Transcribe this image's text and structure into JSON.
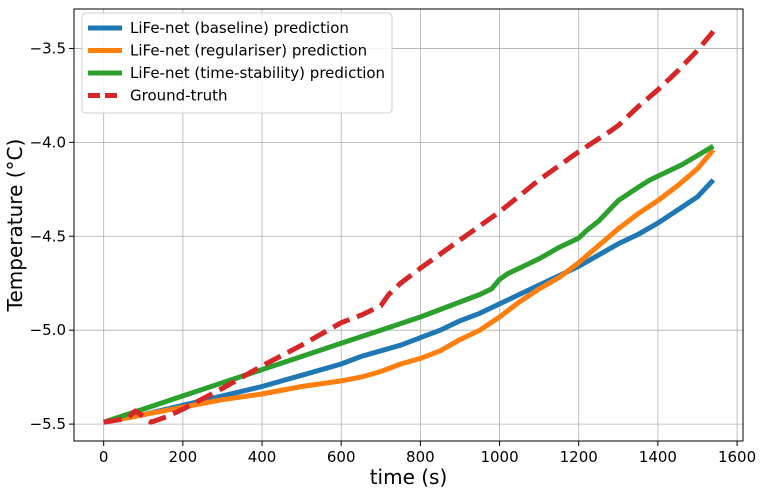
{
  "chart_data": {
    "type": "line",
    "title": "",
    "xlabel": "time (s)",
    "ylabel": "Temperature (°C)",
    "xlim": [
      -75,
      1615
    ],
    "ylim": [
      -5.59,
      -3.29
    ],
    "xticks": [
      0,
      200,
      400,
      600,
      800,
      1000,
      1200,
      1400,
      1600
    ],
    "yticks": [
      -5.5,
      -5.0,
      -4.5,
      -4.0,
      -3.5
    ],
    "xtick_labels": [
      "0",
      "200",
      "400",
      "600",
      "800",
      "1000",
      "1200",
      "1400",
      "1600"
    ],
    "ytick_labels": [
      "−5.5",
      "−5.0",
      "−4.5",
      "−4.0",
      "−3.5"
    ],
    "grid": true,
    "legend_position": "top-left",
    "series": [
      {
        "name": "LiFe-net (baseline) prediction",
        "color": "#1f77b4",
        "style": "solid",
        "x": [
          0,
          100,
          200,
          300,
          400,
          450,
          500,
          600,
          650,
          700,
          750,
          800,
          850,
          900,
          950,
          1000,
          1050,
          1100,
          1150,
          1200,
          1250,
          1300,
          1350,
          1400,
          1450,
          1500,
          1540
        ],
        "y": [
          -5.49,
          -5.45,
          -5.4,
          -5.35,
          -5.3,
          -5.27,
          -5.24,
          -5.18,
          -5.14,
          -5.11,
          -5.08,
          -5.04,
          -5.0,
          -4.95,
          -4.91,
          -4.86,
          -4.81,
          -4.76,
          -4.71,
          -4.66,
          -4.6,
          -4.54,
          -4.49,
          -4.43,
          -4.36,
          -4.29,
          -4.2
        ]
      },
      {
        "name": "LiFe-net (regulariser) prediction",
        "color": "#ff7f0e",
        "style": "solid",
        "x": [
          0,
          100,
          200,
          300,
          400,
          500,
          600,
          650,
          700,
          750,
          800,
          850,
          900,
          950,
          1000,
          1050,
          1100,
          1150,
          1200,
          1250,
          1300,
          1350,
          1400,
          1450,
          1500,
          1540
        ],
        "y": [
          -5.49,
          -5.45,
          -5.41,
          -5.37,
          -5.34,
          -5.3,
          -5.27,
          -5.25,
          -5.22,
          -5.18,
          -5.15,
          -5.11,
          -5.05,
          -5.0,
          -4.93,
          -4.85,
          -4.78,
          -4.72,
          -4.64,
          -4.55,
          -4.46,
          -4.38,
          -4.31,
          -4.23,
          -4.14,
          -4.04
        ]
      },
      {
        "name": "LiFe-net (time-stability) prediction",
        "color": "#2ca02c",
        "style": "solid",
        "x": [
          0,
          100,
          200,
          300,
          400,
          500,
          600,
          700,
          800,
          900,
          950,
          980,
          1000,
          1020,
          1050,
          1100,
          1150,
          1200,
          1220,
          1250,
          1300,
          1350,
          1380,
          1420,
          1460,
          1500,
          1540
        ],
        "y": [
          -5.49,
          -5.42,
          -5.35,
          -5.28,
          -5.21,
          -5.14,
          -5.07,
          -5.0,
          -4.93,
          -4.85,
          -4.81,
          -4.78,
          -4.73,
          -4.7,
          -4.67,
          -4.62,
          -4.56,
          -4.51,
          -4.47,
          -4.42,
          -4.31,
          -4.24,
          -4.2,
          -4.16,
          -4.12,
          -4.07,
          -4.02
        ]
      },
      {
        "name": "Ground-truth",
        "color": "#d62728",
        "style": "dashed",
        "x": [
          0,
          60,
          80,
          120,
          160,
          200,
          300,
          400,
          500,
          600,
          650,
          700,
          720,
          750,
          800,
          900,
          1000,
          1100,
          1200,
          1280,
          1300,
          1350,
          1400,
          1450,
          1500,
          1540
        ],
        "y": [
          -5.49,
          -5.47,
          -5.43,
          -5.49,
          -5.46,
          -5.42,
          -5.31,
          -5.19,
          -5.08,
          -4.96,
          -4.92,
          -4.87,
          -4.81,
          -4.75,
          -4.67,
          -4.52,
          -4.37,
          -4.2,
          -4.05,
          -3.94,
          -3.91,
          -3.81,
          -3.72,
          -3.62,
          -3.51,
          -3.41
        ]
      }
    ]
  }
}
